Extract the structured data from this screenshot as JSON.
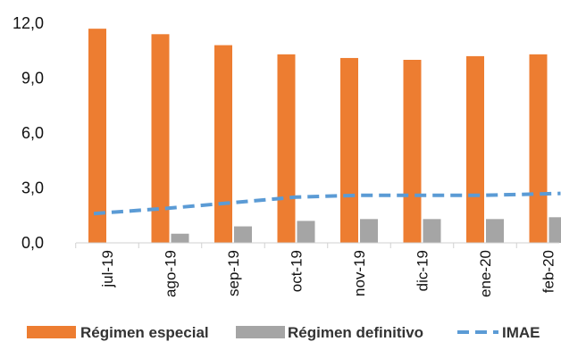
{
  "chart_data": {
    "type": "bar",
    "categories": [
      "jul-19",
      "ago-19",
      "sep-19",
      "oct-19",
      "nov-19",
      "dic-19",
      "ene-20",
      "feb-20"
    ],
    "series": [
      {
        "name": "Régimen especial",
        "type": "bar",
        "color": "#ED7D31",
        "values": [
          11.7,
          11.4,
          10.8,
          10.3,
          10.1,
          10.0,
          10.2,
          10.3
        ]
      },
      {
        "name": "Régimen definitivo",
        "type": "bar",
        "color": "#A5A5A5",
        "values": [
          0.0,
          0.5,
          0.9,
          1.2,
          1.3,
          1.3,
          1.3,
          1.4
        ]
      },
      {
        "name": "IMAE",
        "type": "line",
        "style": "dashed",
        "color": "#5B9BD5",
        "values": [
          1.6,
          1.9,
          2.2,
          2.5,
          2.6,
          2.6,
          2.6,
          2.7
        ]
      }
    ],
    "y_ticks": [
      "0,0",
      "3,0",
      "6,0",
      "9,0",
      "12,0"
    ],
    "y_tick_values": [
      0,
      3,
      6,
      9,
      12
    ],
    "ylim": [
      0,
      12
    ],
    "legend_position": "bottom",
    "grid": false
  }
}
